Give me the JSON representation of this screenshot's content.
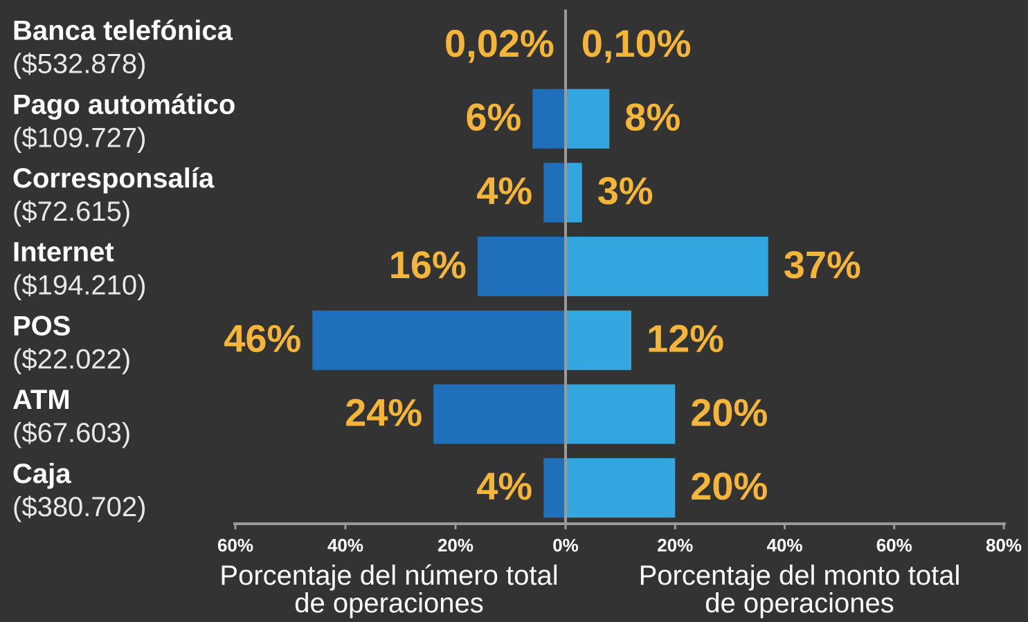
{
  "chart_data": {
    "type": "butterfly",
    "categories": [
      "Banca telefónica",
      "Pago automático",
      "Corresponsalía",
      "Internet",
      "POS",
      "ATM",
      "Caja"
    ],
    "category_notes": [
      "($532.878)",
      "($109.727)",
      "($72.615)",
      "($194.210)",
      "($22.022)",
      "($67.603)",
      "($380.702)"
    ],
    "series": [
      {
        "name": "Porcentaje del número total de operaciones",
        "color": "#1f6fba",
        "side": "left",
        "values": [
          0.02,
          6,
          4,
          16,
          46,
          24,
          4
        ],
        "value_labels": [
          "0,02%",
          "6%",
          "4%",
          "16%",
          "46%",
          "24%",
          "4%"
        ]
      },
      {
        "name": "Porcentaje del monto total de operaciones",
        "color": "#33a6e0",
        "side": "right",
        "values": [
          0.1,
          8,
          3,
          37,
          12,
          20,
          20
        ],
        "value_labels": [
          "0,10%",
          "8%",
          "3%",
          "37%",
          "12%",
          "20%",
          "20%"
        ]
      }
    ],
    "xlim_left": [
      0,
      60
    ],
    "xticks_left": [
      {
        "value": 0,
        "label": "0%"
      },
      {
        "value": 20,
        "label": "20%"
      },
      {
        "value": 40,
        "label": "40%"
      },
      {
        "value": 60,
        "label": "60%"
      }
    ],
    "xlim_right": [
      0,
      80
    ],
    "xticks_right": [
      {
        "value": 20,
        "label": "20%"
      },
      {
        "value": 40,
        "label": "40%"
      },
      {
        "value": 60,
        "label": "60%"
      },
      {
        "value": 80,
        "label": "80%"
      }
    ],
    "label_color": "#f5b53b"
  }
}
